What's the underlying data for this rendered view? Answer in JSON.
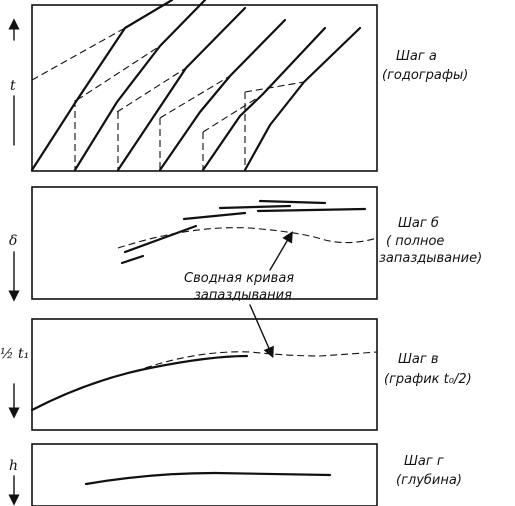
{
  "panels": [
    {
      "id": "a",
      "axis": "t",
      "step": "Шаг а",
      "caption": "(годографы)"
    },
    {
      "id": "b",
      "axis": "δ",
      "step": "Шаг б",
      "caption_lines": [
        "( полное",
        "запаздывание)"
      ]
    },
    {
      "id": "c",
      "axis": "½ t₁",
      "step": "Шаг в",
      "caption": "(график t₀/2)"
    },
    {
      "id": "d",
      "axis": "h",
      "step": "Шаг г",
      "caption": "(глубина)"
    }
  ],
  "callout": {
    "lines": [
      "Сводная кривая",
      "запаздывания"
    ]
  }
}
